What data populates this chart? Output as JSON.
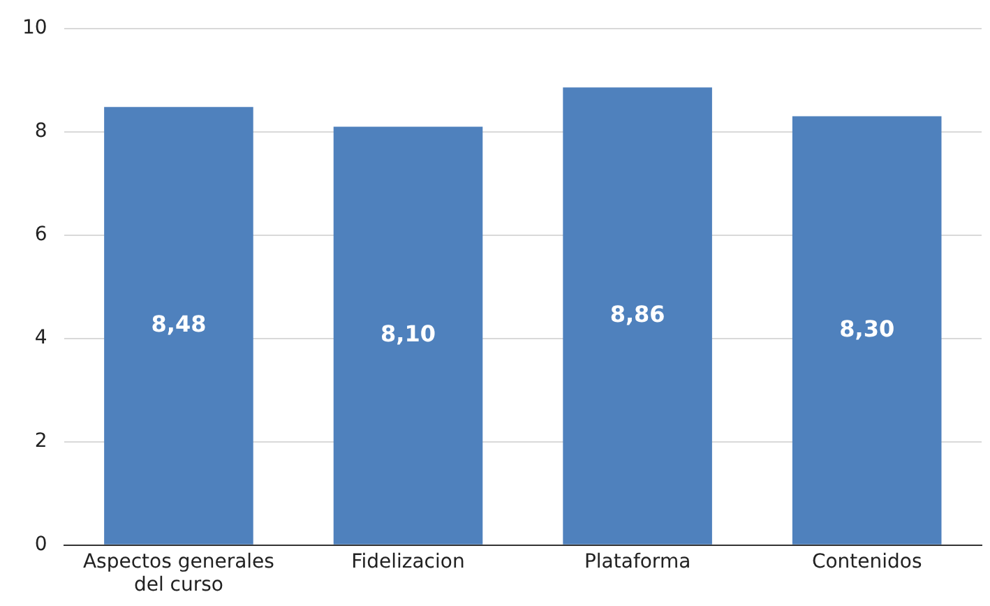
{
  "chart_data": {
    "type": "bar",
    "categories": [
      "Aspectos generales del curso",
      "Fidelizacion",
      "Plataforma",
      "Contenidos"
    ],
    "values": [
      8.48,
      8.1,
      8.86,
      8.3
    ],
    "value_labels": [
      "8,48",
      "8,10",
      "8,86",
      "8,30"
    ],
    "color": "#4f81bd",
    "ylim": [
      0,
      10
    ],
    "yticks": [
      0,
      2,
      4,
      6,
      8,
      10
    ],
    "grid": "y"
  }
}
